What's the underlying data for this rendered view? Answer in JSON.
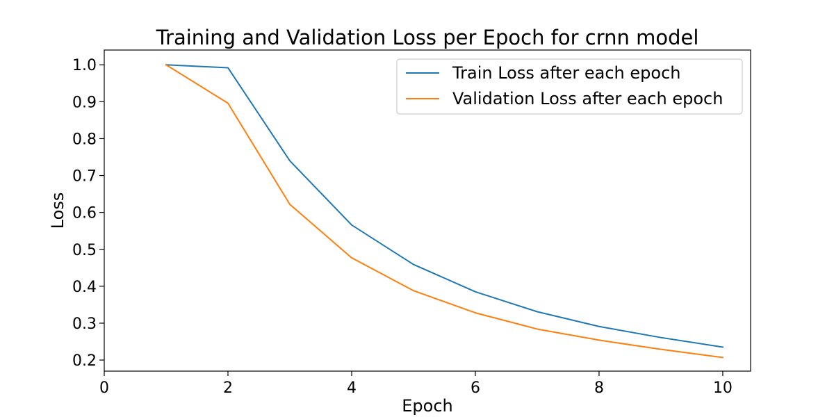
{
  "chart_data": {
    "type": "line",
    "title": "Training and Validation Loss per Epoch for crnn model",
    "xlabel": "Epoch",
    "ylabel": "Loss",
    "x": [
      1,
      2,
      3,
      4,
      5,
      6,
      7,
      8,
      9,
      10
    ],
    "series": [
      {
        "name": "Train Loss after each epoch",
        "color": "#1f77b4",
        "values": [
          1.0,
          0.992,
          0.74,
          0.566,
          0.459,
          0.385,
          0.331,
          0.291,
          0.261,
          0.235
        ]
      },
      {
        "name": "Validation Loss after each epoch",
        "color": "#ff7f0e",
        "values": [
          1.0,
          0.896,
          0.622,
          0.477,
          0.388,
          0.328,
          0.284,
          0.254,
          0.229,
          0.207
        ]
      }
    ],
    "xlim": [
      0,
      10.45
    ],
    "ylim": [
      0.17,
      1.04
    ],
    "xticks": [
      0,
      2,
      4,
      6,
      8,
      10
    ],
    "xtick_labels": [
      "0",
      "2",
      "4",
      "6",
      "8",
      "10"
    ],
    "yticks": [
      0.2,
      0.3,
      0.4,
      0.5,
      0.6,
      0.7,
      0.8,
      0.9,
      1.0
    ],
    "ytick_labels": [
      "0.2",
      "0.3",
      "0.4",
      "0.5",
      "0.6",
      "0.7",
      "0.8",
      "0.9",
      "1.0"
    ],
    "grid": false,
    "legend_position": "top-right"
  }
}
